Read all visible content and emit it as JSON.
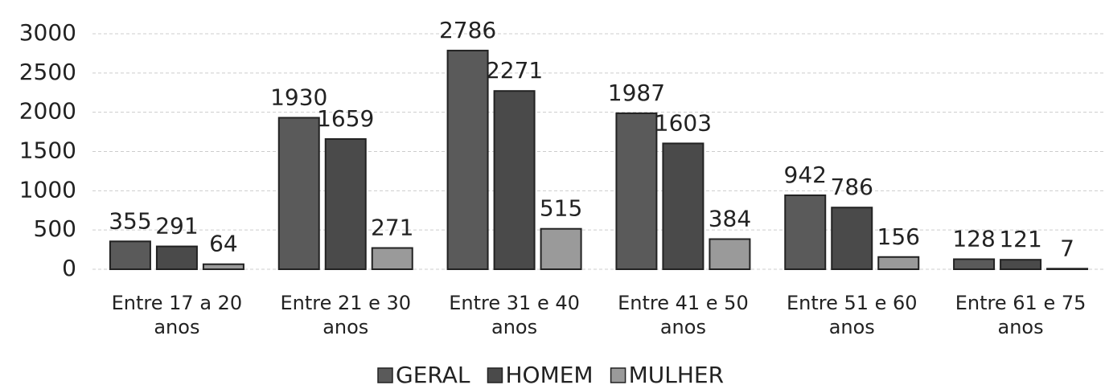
{
  "chart_data": {
    "type": "bar",
    "categories": [
      "Entre 17 a 20 anos",
      "Entre 21 e 30 anos",
      "Entre 31 e 40 anos",
      "Entre 41 e 50 anos",
      "Entre 51 e 60 anos",
      "Entre 61 e 75 anos"
    ],
    "series": [
      {
        "name": "GERAL",
        "color": "#5a5a5a",
        "values": [
          355,
          1930,
          2786,
          1987,
          942,
          128
        ]
      },
      {
        "name": "HOMEM",
        "color": "#4a4a4a",
        "values": [
          291,
          1659,
          2271,
          1603,
          786,
          121
        ]
      },
      {
        "name": "MULHER",
        "color": "#9a9a9a",
        "values": [
          64,
          271,
          515,
          384,
          156,
          7
        ]
      }
    ],
    "ylim": [
      0,
      3000
    ],
    "yticks": [
      0,
      500,
      1000,
      1500,
      2000,
      2500,
      3000
    ],
    "grid": true,
    "legend": "bottom"
  }
}
